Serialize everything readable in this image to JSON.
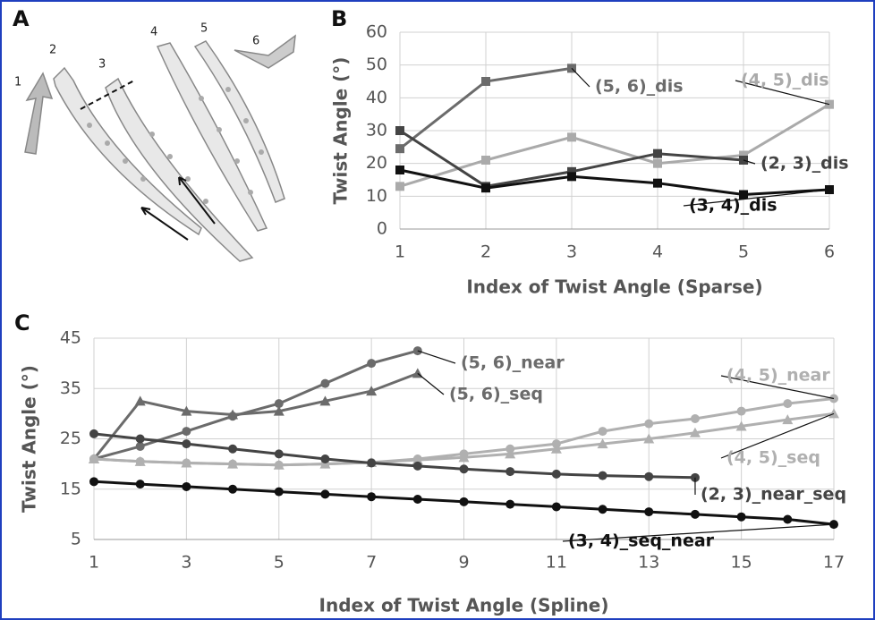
{
  "panels": {
    "labels": [
      "A",
      "B",
      "C"
    ],
    "a_numbers": [
      "1",
      "2",
      "3",
      "4",
      "5",
      "6"
    ]
  },
  "chart_data": [
    {
      "type": "line",
      "xlabel": "Index of Twist Angle (Sparse)",
      "ylabel": "Twist Angle (°)",
      "x": [
        1,
        2,
        3,
        4,
        5,
        6
      ],
      "xlim": [
        1,
        6
      ],
      "xticks": [
        1,
        2,
        3,
        4,
        5,
        6
      ],
      "ylim": [
        0,
        60
      ],
      "yticks": [
        0,
        10,
        20,
        30,
        40,
        50,
        60
      ],
      "grid": true,
      "series": [
        {
          "name": "(5, 6)_dis",
          "color": "#6b6b6b",
          "marker": "square",
          "values": [
            24.5,
            45,
            49,
            null,
            null,
            null
          ]
        },
        {
          "name": "(4, 5)_dis",
          "color": "#aaaaaa",
          "marker": "square",
          "values": [
            13,
            21,
            28,
            20,
            22.5,
            38
          ]
        },
        {
          "name": "(2, 3)_dis",
          "color": "#444444",
          "marker": "square",
          "values": [
            30,
            13,
            17.5,
            23,
            21,
            null
          ]
        },
        {
          "name": "(3, 4)_dis",
          "color": "#111111",
          "marker": "square",
          "values": [
            18,
            12.5,
            16,
            14,
            10.5,
            12
          ]
        }
      ]
    },
    {
      "type": "line",
      "xlabel": "Index of Twist Angle (Spline)",
      "ylabel": "Twist Angle (°)",
      "x": [
        1,
        2,
        3,
        4,
        5,
        6,
        7,
        8,
        9,
        10,
        11,
        12,
        13,
        14,
        15,
        16,
        17
      ],
      "xlim": [
        1,
        17
      ],
      "xticks": [
        1,
        3,
        5,
        7,
        9,
        11,
        13,
        15,
        17
      ],
      "ylim": [
        5,
        45
      ],
      "yticks": [
        5,
        15,
        25,
        35,
        45
      ],
      "grid": true,
      "series": [
        {
          "name": "(5, 6)_near",
          "color": "#6b6b6b",
          "marker": "circle",
          "values": [
            21,
            23.5,
            26.5,
            29.5,
            32,
            36,
            40,
            42.5,
            null,
            null,
            null,
            null,
            null,
            null,
            null,
            null,
            null
          ]
        },
        {
          "name": "(5, 6)_seq",
          "color": "#6b6b6b",
          "marker": "triangle",
          "values": [
            21,
            32.5,
            30.5,
            29.8,
            30.5,
            32.5,
            34.5,
            38,
            null,
            null,
            null,
            null,
            null,
            null,
            null,
            null,
            null
          ]
        },
        {
          "name": "(4, 5)_near",
          "color": "#b0b0b0",
          "marker": "circle",
          "values": [
            21,
            20.5,
            20.2,
            20,
            19.8,
            20,
            20.3,
            21,
            22,
            23,
            24,
            26.5,
            28,
            29,
            30.5,
            32,
            33
          ]
        },
        {
          "name": "(4, 5)_seq",
          "color": "#b0b0b0",
          "marker": "triangle",
          "values": [
            21,
            20.5,
            20.2,
            20,
            19.8,
            20,
            20.3,
            20.8,
            21.3,
            22,
            23,
            24,
            25,
            26.2,
            27.5,
            28.8,
            30
          ]
        },
        {
          "name": "(2, 3)_near_seq",
          "color": "#444444",
          "marker": "circle",
          "values": [
            26,
            25,
            24,
            23,
            22,
            21,
            20.2,
            19.6,
            19,
            18.5,
            18,
            17.7,
            17.5,
            17.3,
            null,
            null,
            null
          ]
        },
        {
          "name": "(3, 4)_seq_near",
          "color": "#111111",
          "marker": "circle",
          "values": [
            16.5,
            16,
            15.5,
            15,
            14.5,
            14,
            13.5,
            13,
            12.5,
            12,
            11.5,
            11,
            10.5,
            10,
            9.5,
            9,
            8
          ]
        }
      ]
    }
  ]
}
